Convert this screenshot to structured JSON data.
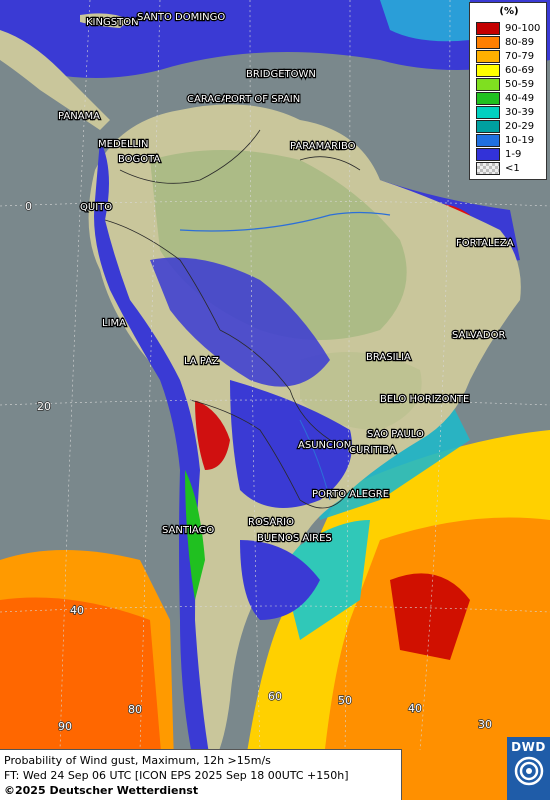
{
  "legend": {
    "unit": "(%)",
    "items": [
      {
        "label": "90-100",
        "color": "#c40000"
      },
      {
        "label": "80-89",
        "color": "#ff7f00"
      },
      {
        "label": "70-79",
        "color": "#ffb000"
      },
      {
        "label": "60-69",
        "color": "#ffff00"
      },
      {
        "label": "50-59",
        "color": "#7fdf20"
      },
      {
        "label": "40-49",
        "color": "#20c020"
      },
      {
        "label": "30-39",
        "color": "#00d0c0"
      },
      {
        "label": "20-29",
        "color": "#00a0a0"
      },
      {
        "label": "10-19",
        "color": "#2070e0"
      },
      {
        "label": "1-9",
        "color": "#3232d8"
      },
      {
        "label": "<1",
        "color": "#d6d6d6"
      }
    ]
  },
  "cities": [
    "KINGSTON",
    "SANTO DOMINGO",
    "BRIDGETOWN",
    "CARACAS",
    "PORT OF SPAIN",
    "PANAMA",
    "MEDELLIN",
    "BOGOTA",
    "PARAMARIBO",
    "QUITO",
    "FORTALEZA",
    "LIMA",
    "SALVADOR",
    "LA PAZ",
    "BRASILIA",
    "BELO HORIZONTE",
    "ASUNCION",
    "SAO PAULO",
    "CURITIBA",
    "PORTO ALEGRE",
    "SANTIAGO",
    "ROSARIO",
    "BUENOS AIRES"
  ],
  "grid_labels": [
    "0",
    "20",
    "40",
    "60",
    "50",
    "40",
    "30",
    "90",
    "80"
  ],
  "info": {
    "line1": "Probability of Wind gust, Maximum, 12h >15m/s",
    "line2": "FT: Wed 24 Sep 06 UTC [ICON EPS 2025 Sep 18 00UTC +150h]",
    "copyright": "©2025 Deutscher Wetterdienst"
  },
  "logo": {
    "text": "DWD",
    "icon": "dwd-swirl-icon"
  }
}
